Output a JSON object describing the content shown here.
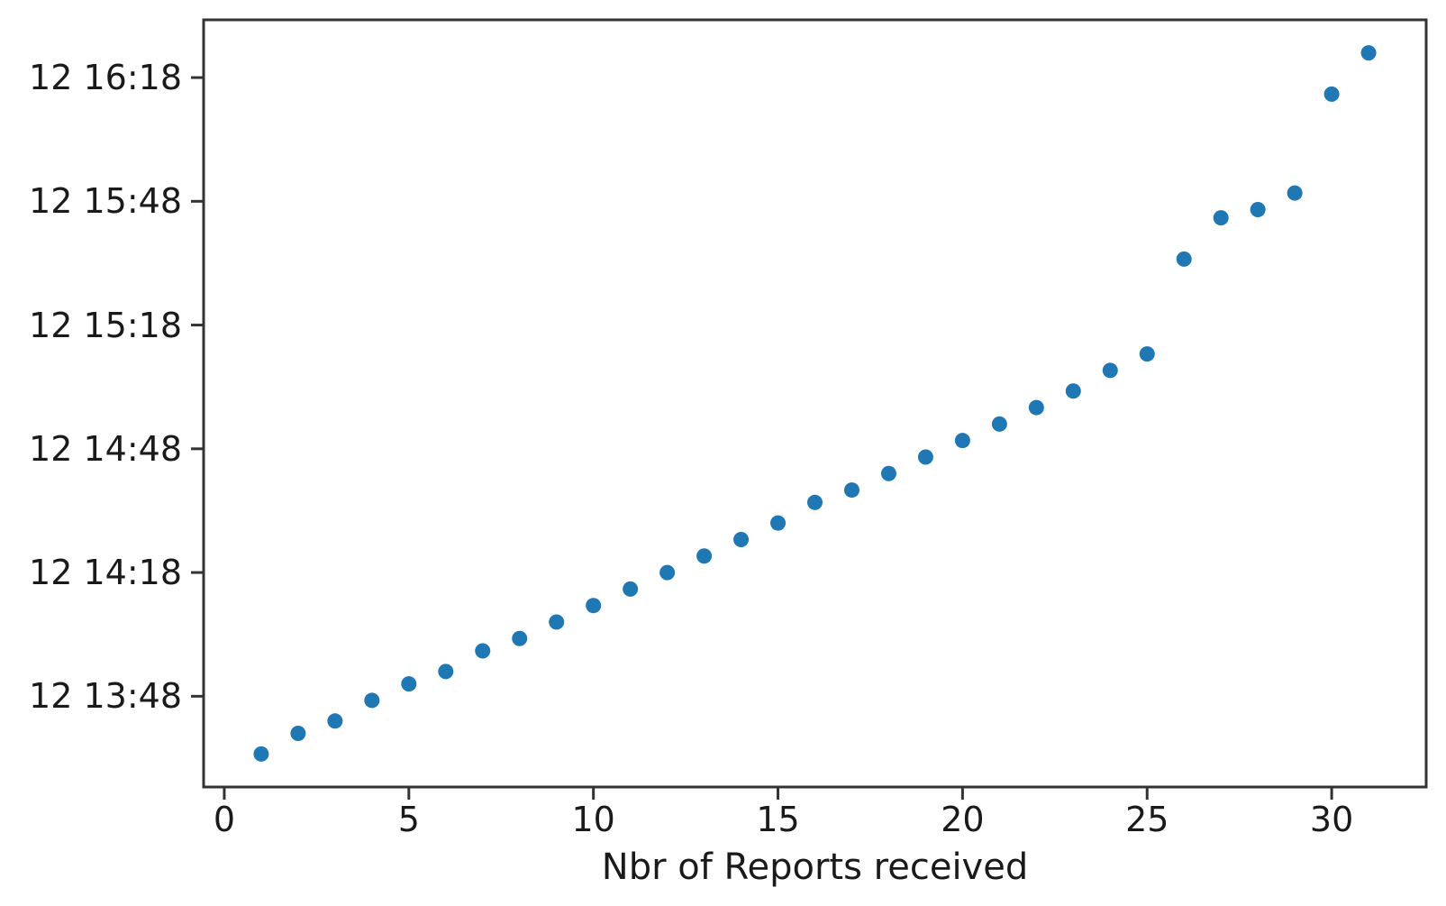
{
  "figure": {
    "background_color": "#ffffff",
    "spine_color": "#333333",
    "text_color": "#1a1a1a"
  },
  "chart_data": {
    "type": "scatter",
    "title": "",
    "xlabel": "Nbr of Reports received",
    "ylabel": "",
    "point_color": "#1f77b4",
    "grid": false,
    "legend_position": null,
    "x": [
      1,
      2,
      3,
      4,
      5,
      6,
      7,
      8,
      9,
      10,
      11,
      12,
      13,
      14,
      15,
      16,
      17,
      18,
      19,
      20,
      21,
      22,
      23,
      24,
      25,
      26,
      27,
      28,
      29,
      30,
      31
    ],
    "y_times": [
      "13:34",
      "13:39",
      "13:42",
      "13:47",
      "13:51",
      "13:54",
      "13:59",
      "14:02",
      "14:06",
      "14:10",
      "14:14",
      "14:18",
      "14:22",
      "14:26",
      "14:30",
      "14:35",
      "14:38",
      "14:42",
      "14:46",
      "14:50",
      "14:54",
      "14:58",
      "15:02",
      "15:07",
      "15:11",
      "15:34",
      "15:44",
      "15:46",
      "15:50",
      "16:14",
      "16:24"
    ],
    "y_day_prefix": "12",
    "x_ticks": [
      0,
      5,
      10,
      15,
      20,
      25,
      30
    ],
    "y_tick_labels": [
      "12 13:48",
      "12 14:18",
      "12 14:48",
      "12 15:18",
      "12 15:48",
      "12 16:18"
    ],
    "xlim": [
      -0.56,
      32.56
    ],
    "ylim_times": [
      "13:26",
      "16:32"
    ]
  }
}
